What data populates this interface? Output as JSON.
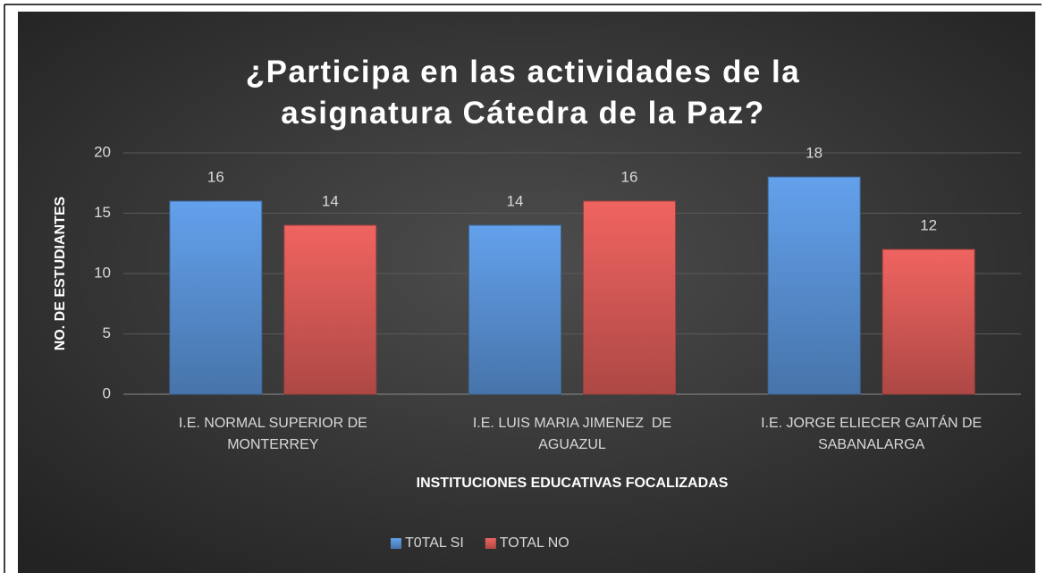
{
  "chart_data": {
    "type": "bar",
    "title": "¿Participa en las actividades de la asignatura Cátedra de la Paz?",
    "x_label": "INSTITUCIONES EDUCATIVAS FOCALIZADAS",
    "y_label": "NO. DE ESTUDIANTES",
    "categories": [
      "I.E. NORMAL SUPERIOR DE MONTERREY",
      "I.E. LUIS MARIA JIMENEZ  DE AGUAZUL",
      "I.E. JORGE ELIECER GAITÁN DE SABANALARGA"
    ],
    "series": [
      {
        "name": "T0TAL SI",
        "color": "#4f81bd",
        "values": [
          16,
          14,
          18
        ]
      },
      {
        "name": "TOTAL NO",
        "color": "#c0504d",
        "values": [
          14,
          16,
          12
        ]
      }
    ],
    "ylim": [
      0,
      20
    ],
    "yticks": [
      0,
      5,
      10,
      15,
      20
    ],
    "grid": true,
    "legend": "bottom"
  }
}
